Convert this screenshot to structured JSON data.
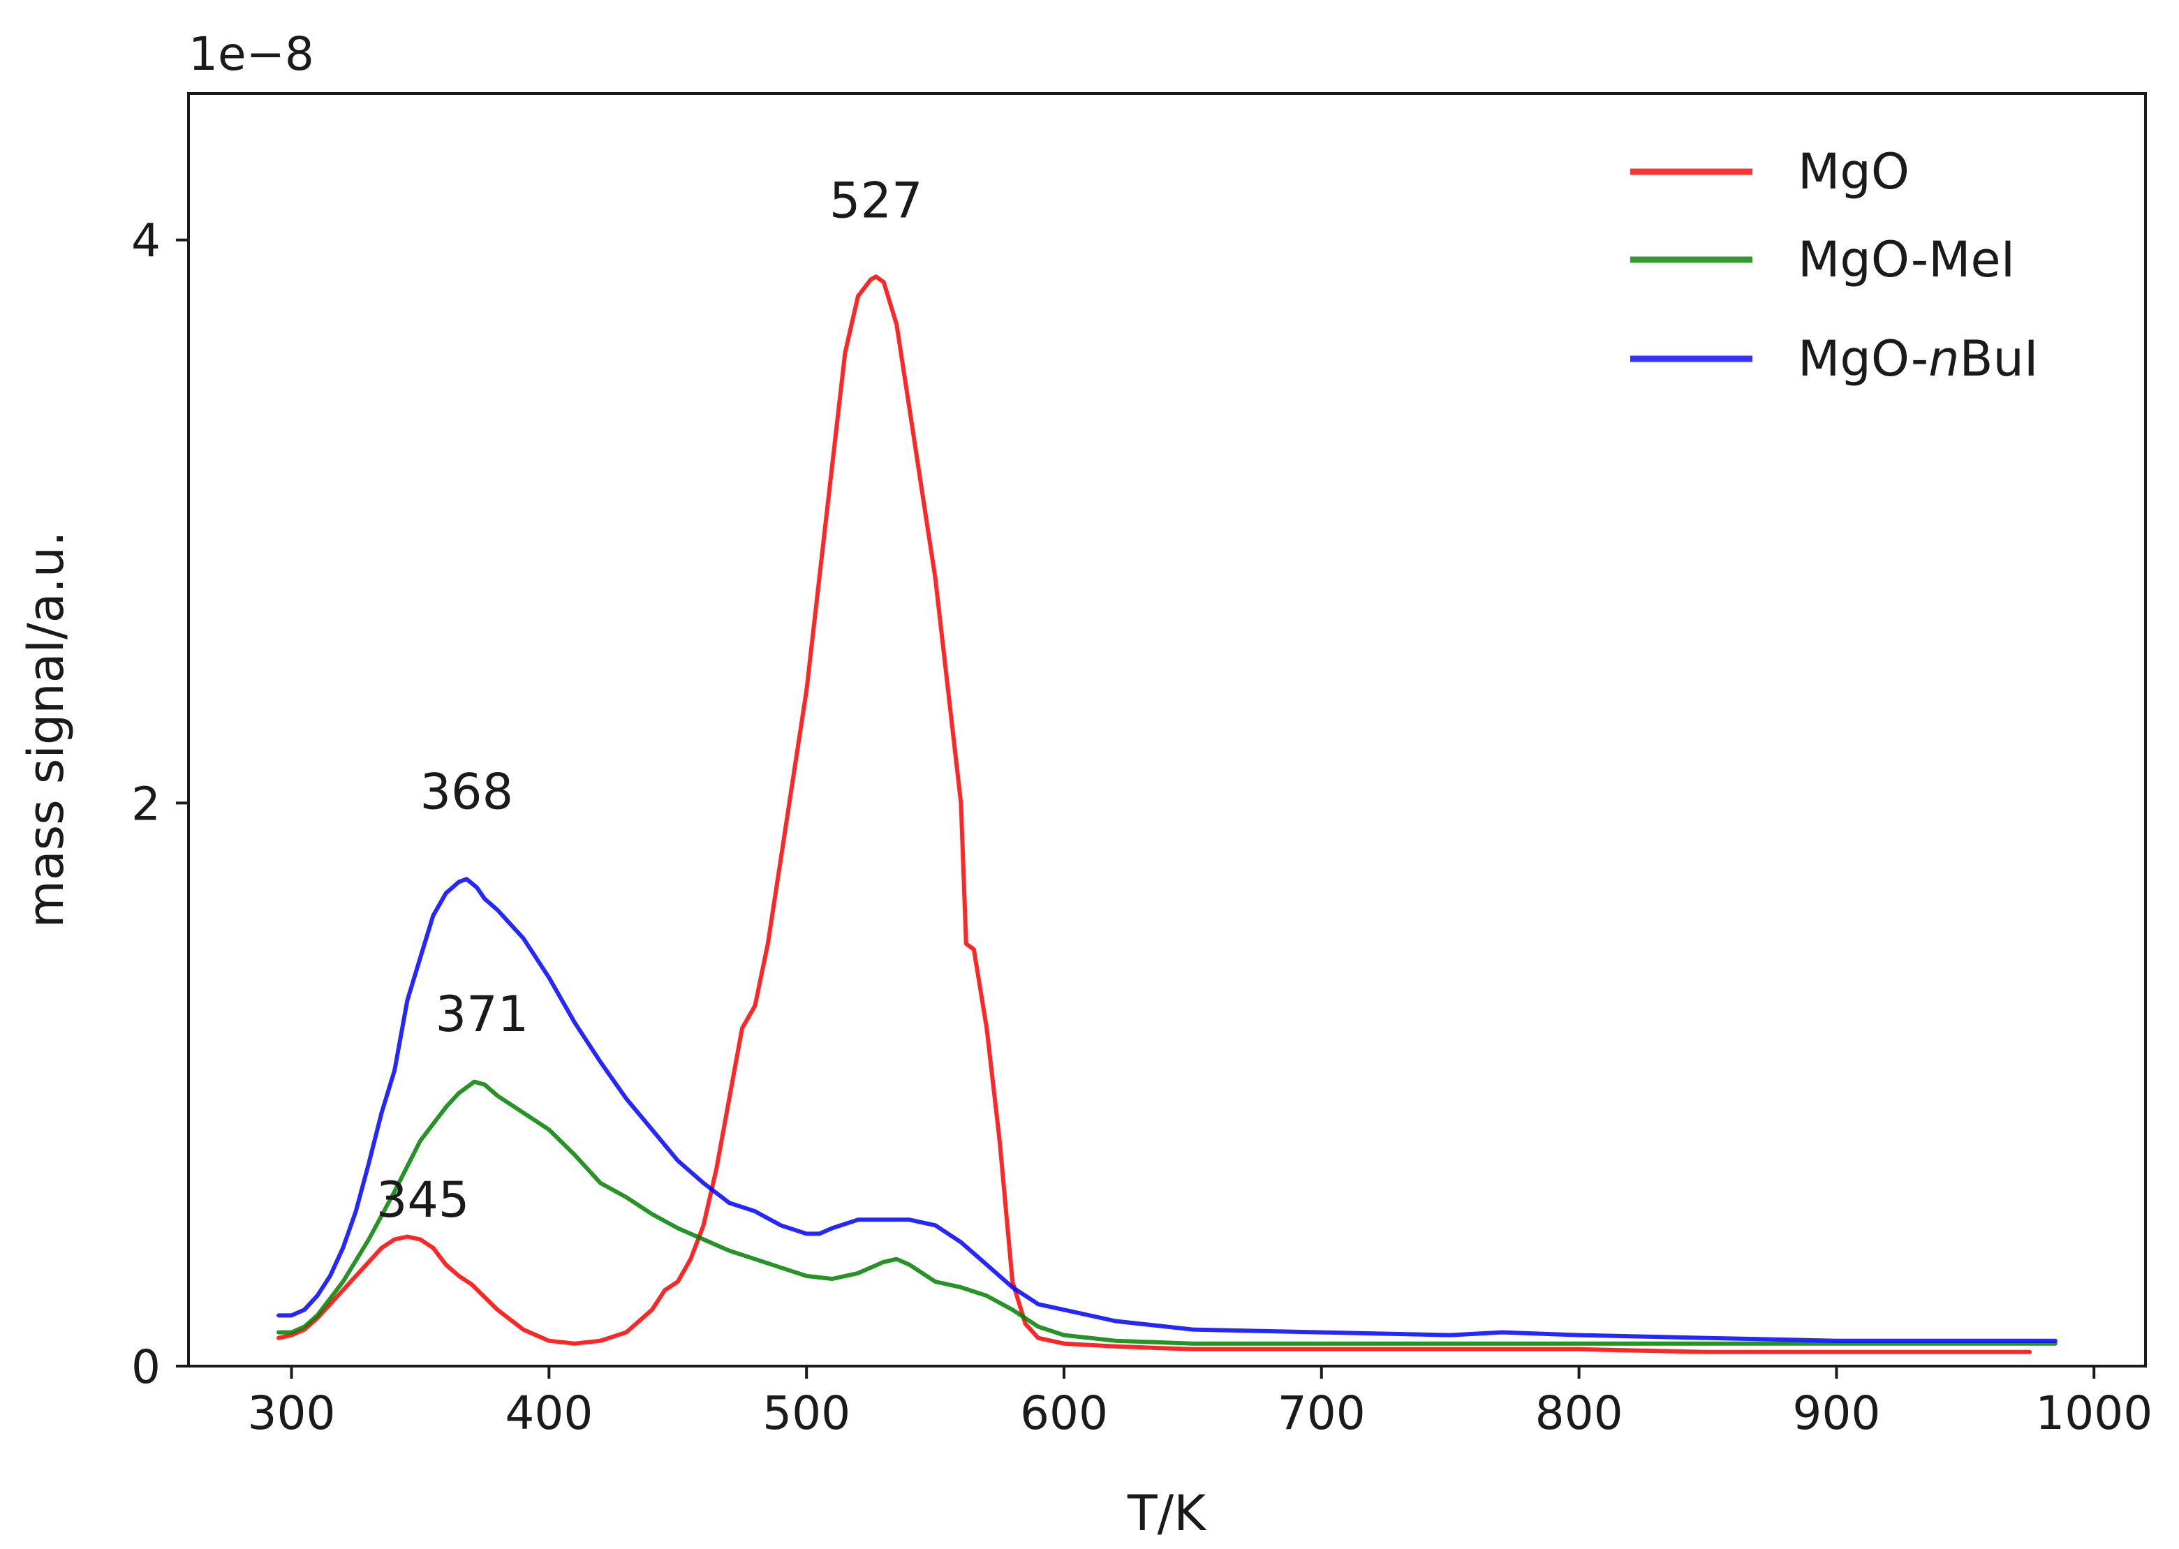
{
  "chart_data": {
    "type": "line",
    "title": "",
    "xlabel": "T/K",
    "ylabel": "mass signal/a.u.",
    "y_offset_text": "1e−8",
    "xlim": [
      260,
      1020
    ],
    "ylim": [
      0,
      4.52
    ],
    "xticks": [
      300,
      400,
      500,
      600,
      700,
      800,
      900,
      1000
    ],
    "yticks": [
      0,
      2,
      4
    ],
    "grid": false,
    "legend_position": "top-right",
    "legend": [
      {
        "name_prefix": "MgO",
        "name_italic": "",
        "name_suffix": ""
      },
      {
        "name_prefix": "MgO-MeI",
        "name_italic": "",
        "name_suffix": ""
      },
      {
        "name_prefix": "MgO-",
        "name_italic": "n",
        "name_suffix": "BuI"
      }
    ],
    "series": [
      {
        "name": "MgO",
        "color": "#ff0000",
        "x": [
          295,
          300,
          305,
          310,
          315,
          320,
          325,
          330,
          335,
          340,
          345,
          350,
          355,
          360,
          365,
          370,
          380,
          390,
          400,
          410,
          420,
          430,
          440,
          445,
          450,
          455,
          460,
          465,
          470,
          475,
          480,
          485,
          490,
          495,
          500,
          505,
          510,
          515,
          520,
          525,
          527,
          530,
          535,
          540,
          545,
          550,
          555,
          560,
          562,
          565,
          570,
          575,
          580,
          585,
          590,
          600,
          620,
          650,
          700,
          750,
          800,
          850,
          900,
          950,
          975
        ],
        "y": [
          0.1,
          0.11,
          0.13,
          0.17,
          0.22,
          0.27,
          0.32,
          0.37,
          0.42,
          0.45,
          0.46,
          0.45,
          0.42,
          0.36,
          0.32,
          0.29,
          0.2,
          0.13,
          0.09,
          0.08,
          0.09,
          0.12,
          0.2,
          0.27,
          0.3,
          0.38,
          0.5,
          0.7,
          0.95,
          1.2,
          1.28,
          1.5,
          1.8,
          2.1,
          2.4,
          2.8,
          3.2,
          3.6,
          3.8,
          3.86,
          3.87,
          3.85,
          3.7,
          3.4,
          3.1,
          2.8,
          2.4,
          2.0,
          1.5,
          1.48,
          1.2,
          0.8,
          0.3,
          0.15,
          0.1,
          0.08,
          0.07,
          0.06,
          0.06,
          0.06,
          0.06,
          0.05,
          0.05,
          0.05,
          0.05
        ]
      },
      {
        "name": "MgO-MeI",
        "color": "#008000",
        "x": [
          295,
          300,
          305,
          310,
          320,
          330,
          340,
          350,
          360,
          365,
          371,
          375,
          380,
          390,
          400,
          410,
          420,
          430,
          440,
          450,
          460,
          470,
          480,
          490,
          500,
          510,
          520,
          530,
          535,
          540,
          550,
          560,
          570,
          580,
          590,
          600,
          620,
          650,
          700,
          750,
          800,
          850,
          900,
          950,
          985
        ],
        "y": [
          0.12,
          0.12,
          0.14,
          0.18,
          0.3,
          0.45,
          0.62,
          0.8,
          0.92,
          0.97,
          1.01,
          1.0,
          0.96,
          0.9,
          0.84,
          0.75,
          0.65,
          0.6,
          0.54,
          0.49,
          0.45,
          0.41,
          0.38,
          0.35,
          0.32,
          0.31,
          0.33,
          0.37,
          0.38,
          0.36,
          0.3,
          0.28,
          0.25,
          0.2,
          0.14,
          0.11,
          0.09,
          0.08,
          0.08,
          0.08,
          0.08,
          0.08,
          0.08,
          0.08,
          0.08
        ]
      },
      {
        "name": "MgO-nBuI",
        "color": "#0000ff",
        "x": [
          295,
          300,
          305,
          310,
          315,
          320,
          325,
          330,
          335,
          340,
          345,
          350,
          355,
          360,
          365,
          368,
          372,
          375,
          380,
          390,
          400,
          410,
          420,
          430,
          440,
          450,
          460,
          470,
          480,
          490,
          500,
          505,
          510,
          520,
          530,
          540,
          550,
          560,
          570,
          580,
          590,
          600,
          620,
          650,
          700,
          750,
          770,
          800,
          850,
          900,
          950,
          985
        ],
        "y": [
          0.18,
          0.18,
          0.2,
          0.25,
          0.32,
          0.42,
          0.55,
          0.72,
          0.9,
          1.05,
          1.3,
          1.45,
          1.6,
          1.68,
          1.72,
          1.73,
          1.7,
          1.66,
          1.62,
          1.52,
          1.38,
          1.22,
          1.08,
          0.95,
          0.84,
          0.73,
          0.65,
          0.58,
          0.55,
          0.5,
          0.47,
          0.47,
          0.49,
          0.52,
          0.52,
          0.52,
          0.5,
          0.44,
          0.36,
          0.28,
          0.22,
          0.2,
          0.16,
          0.13,
          0.12,
          0.11,
          0.12,
          0.11,
          0.1,
          0.09,
          0.09,
          0.09
        ]
      }
    ],
    "annotations": [
      {
        "text": "527",
        "x": 527,
        "y": 4.08
      },
      {
        "text": "368",
        "x": 368,
        "y": 1.98
      },
      {
        "text": "371",
        "x": 374,
        "y": 1.19
      },
      {
        "text": "345",
        "x": 351,
        "y": 0.53
      }
    ]
  }
}
